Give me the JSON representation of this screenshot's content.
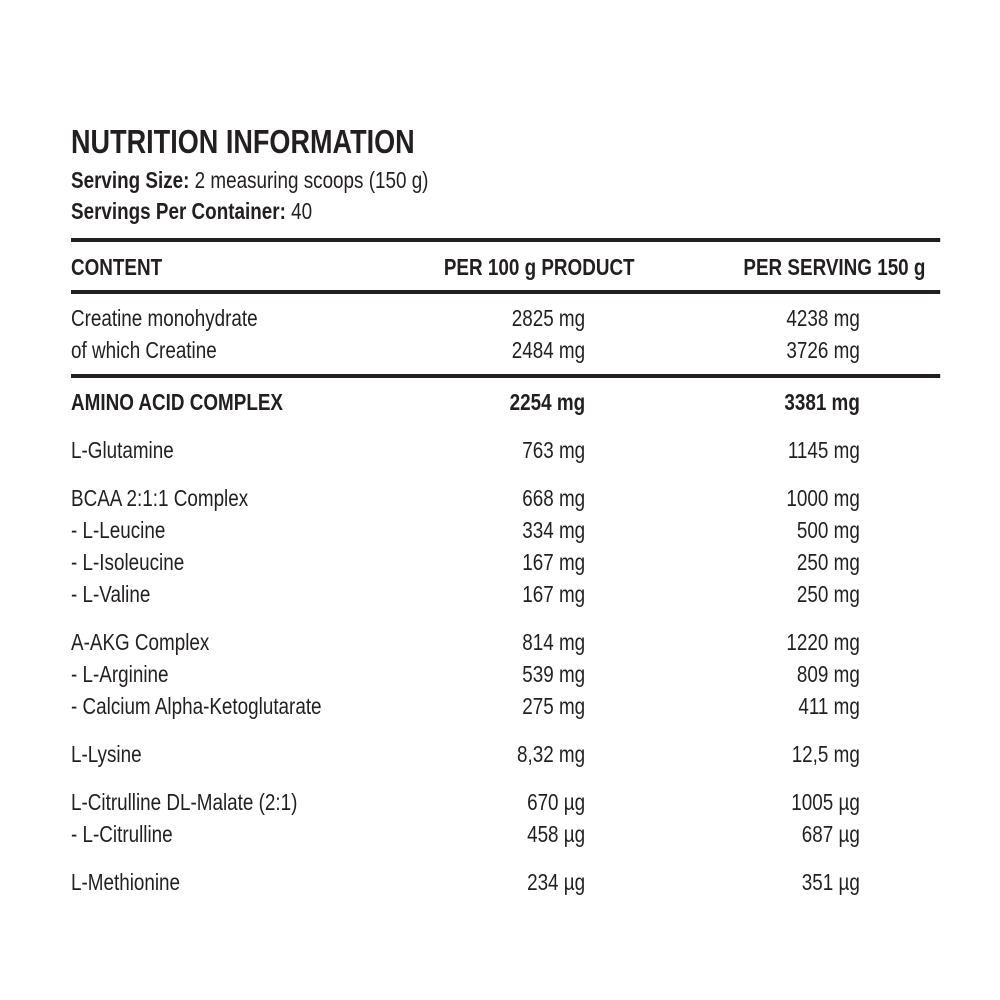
{
  "title": "NUTRITION INFORMATION",
  "serving_size": {
    "label": "Serving Size:",
    "value": "2 measuring scoops (150 g)"
  },
  "servings_per_container": {
    "label": "Servings Per Container:",
    "value": "40"
  },
  "table": {
    "columns": [
      "CONTENT",
      "PER 100 g PRODUCT",
      "PER SERVING 150 g"
    ],
    "groups": [
      {
        "rule_after": true,
        "rows": [
          {
            "name": "Creatine monohydrate",
            "per_100g": "2825 mg",
            "per_serving": "4238 mg"
          },
          {
            "name": "of which Creatine",
            "per_100g": "2484 mg",
            "per_serving": "3726 mg"
          }
        ]
      },
      {
        "rows": [
          {
            "name": "AMINO ACID COMPLEX",
            "per_100g": "2254 mg",
            "per_serving": "3381 mg",
            "bold": true
          }
        ]
      },
      {
        "rows": [
          {
            "name": "L-Glutamine",
            "per_100g": "763 mg",
            "per_serving": "1145 mg"
          }
        ]
      },
      {
        "rows": [
          {
            "name": "BCAA 2:1:1 Complex",
            "per_100g": "668 mg",
            "per_serving": "1000 mg"
          },
          {
            "name": "- L-Leucine",
            "per_100g": "334 mg",
            "per_serving": "500 mg"
          },
          {
            "name": "- L-Isoleucine",
            "per_100g": "167 mg",
            "per_serving": "250 mg"
          },
          {
            "name": "- L-Valine",
            "per_100g": "167 mg",
            "per_serving": "250 mg"
          }
        ]
      },
      {
        "rows": [
          {
            "name": "A-AKG Complex",
            "per_100g": "814 mg",
            "per_serving": "1220 mg"
          },
          {
            "name": "- L-Arginine",
            "per_100g": "539 mg",
            "per_serving": "809 mg"
          },
          {
            "name": "- Calcium Alpha-Ketoglutarate",
            "per_100g": "275 mg",
            "per_serving": "411 mg"
          }
        ]
      },
      {
        "rows": [
          {
            "name": "L-Lysine",
            "per_100g": "8,32 mg",
            "per_serving": "12,5 mg"
          }
        ]
      },
      {
        "rows": [
          {
            "name": "L-Citrulline DL-Malate (2:1)",
            "per_100g": "670 µg",
            "per_serving": "1005 µg"
          },
          {
            "name": "- L-Citrulline",
            "per_100g": "458 µg",
            "per_serving": "687 µg"
          }
        ]
      },
      {
        "rows": [
          {
            "name": "L-Methionine",
            "per_100g": "234 µg",
            "per_serving": "351 µg"
          }
        ]
      }
    ]
  },
  "colors": {
    "text": "#231f20",
    "background": "#ffffff"
  }
}
